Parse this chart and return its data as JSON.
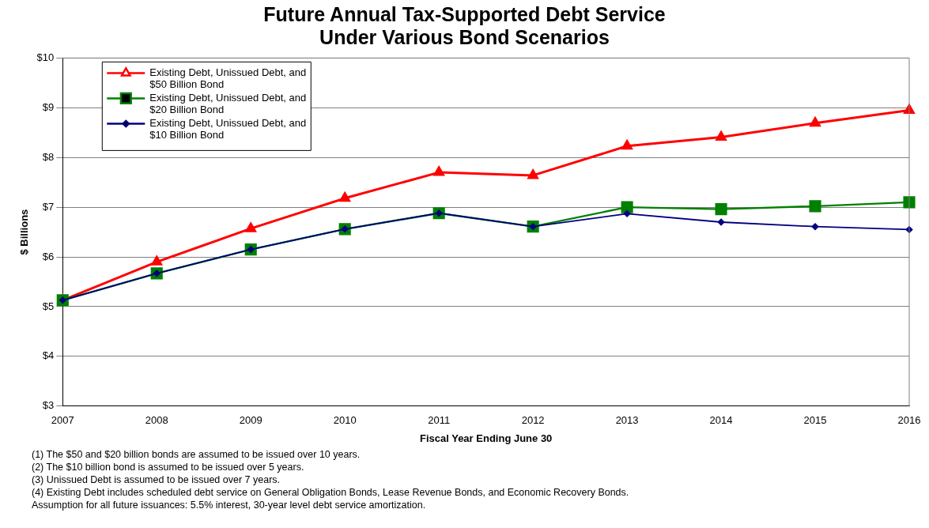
{
  "chart_data": {
    "type": "line",
    "title": "Future Annual Tax-Supported Debt Service\nUnder Various Bond Scenarios",
    "xlabel": "Fiscal Year Ending June 30",
    "ylabel": "$ Billions",
    "categories": [
      "2007",
      "2008",
      "2009",
      "2010",
      "2011",
      "2012",
      "2013",
      "2014",
      "2015",
      "2016"
    ],
    "series": [
      {
        "name": "Existing Debt, Unissued Debt, and $50 Billion Bond",
        "color": "#ff0000",
        "marker": "triangle",
        "values": [
          5.13,
          5.9,
          6.57,
          7.18,
          7.7,
          7.64,
          8.23,
          8.41,
          8.69,
          8.95
        ]
      },
      {
        "name": "Existing Debt, Unissued Debt, and $20 Billion Bond",
        "color": "#008000",
        "marker": "square",
        "values": [
          5.13,
          5.67,
          6.15,
          6.56,
          6.88,
          6.61,
          7.0,
          6.96,
          7.02,
          7.1
        ]
      },
      {
        "name": "Existing Debt, Unissued Debt, and $10 Billion Bond",
        "color": "#000080",
        "marker": "diamond",
        "values": [
          5.13,
          5.67,
          6.15,
          6.56,
          6.88,
          6.61,
          6.87,
          6.7,
          6.61,
          6.55
        ]
      }
    ],
    "ylim": [
      3,
      10
    ],
    "yticks": [
      {
        "value": 3,
        "label": "$3"
      },
      {
        "value": 4,
        "label": "$4"
      },
      {
        "value": 5,
        "label": "$5"
      },
      {
        "value": 6,
        "label": "$6"
      },
      {
        "value": 7,
        "label": "$7"
      },
      {
        "value": 8,
        "label": "$8"
      },
      {
        "value": 9,
        "label": "$9"
      },
      {
        "value": 10,
        "label": "$10"
      }
    ],
    "grid": "y",
    "legend": "top left",
    "annotations": [
      "(1) The $50 and $20 billion bonds are assumed to be issued over 10 years.",
      "(2) The $10 billion bond is assumed to be issued over 5 years.",
      "(3) Unissued Debt is assumed to be issued over 7 years.",
      "(4) Existing Debt includes scheduled debt service on General Obligation Bonds, Lease Revenue Bonds, and Economic Recovery Bonds.",
      "Assumption for all future issuances:  5.5% interest, 30-year level debt service amortization."
    ]
  }
}
